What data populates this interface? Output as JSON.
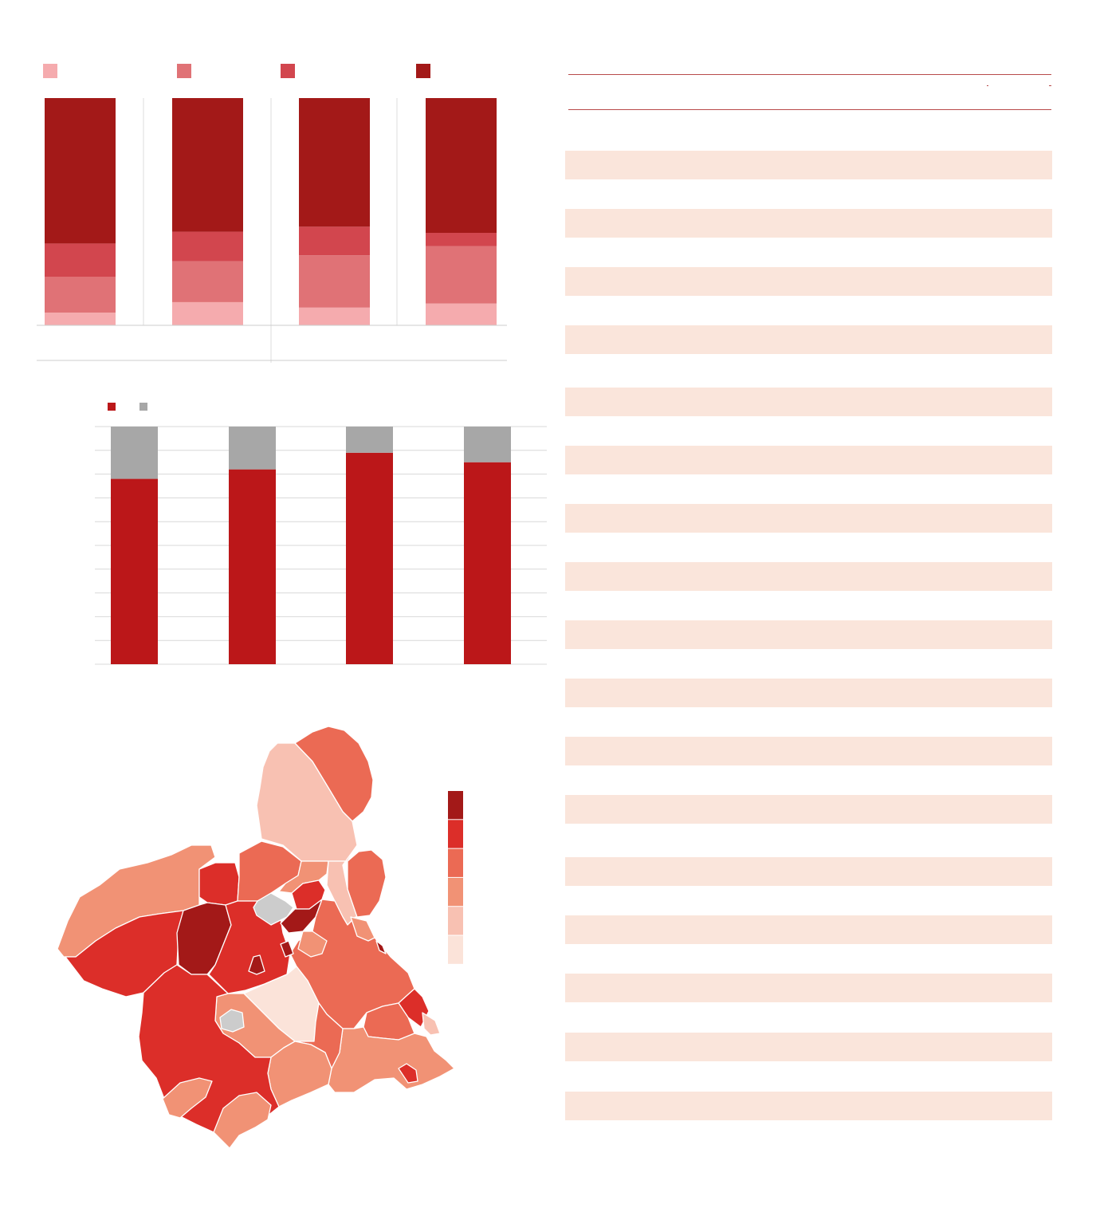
{
  "colors": {
    "background": "#ffffff",
    "stack_1": "#f5abae",
    "stack_2": "#e07276",
    "stack_3": "#d2464e",
    "stack_4": "#a31918",
    "bar_primary": "#bb1719",
    "bar_secondary": "#a7a7a7",
    "table_band": "#fae5db",
    "table_rule": "#b84a4a",
    "grid": "#d8d8d8",
    "map_no_data": "#cccccc",
    "map_scale": [
      "#a31918",
      "#dc2e29",
      "#eb6a54",
      "#f19275",
      "#f8c1b2",
      "#fbe3d9"
    ]
  },
  "chart_data": [
    {
      "type": "bar",
      "stacked": true,
      "normalized": true,
      "categories": [
        "",
        "",
        "",
        ""
      ],
      "series": [
        {
          "color": "#f5abae",
          "values": [
            5.6,
            10.2,
            7.8,
            9.6
          ]
        },
        {
          "color": "#e07276",
          "values": [
            15.8,
            18.0,
            23.0,
            25.2
          ]
        },
        {
          "color": "#d2464e",
          "values": [
            14.6,
            13.0,
            12.6,
            5.9
          ]
        },
        {
          "color": "#a31918",
          "values": [
            64.0,
            58.8,
            56.6,
            59.3
          ]
        }
      ],
      "ylim": [
        0,
        100
      ],
      "legend_position": "top",
      "grid": false
    },
    {
      "type": "bar",
      "stacked": true,
      "categories": [
        "",
        "",
        "",
        ""
      ],
      "series": [
        {
          "color": "#bb1719",
          "values": [
            78,
            82,
            89,
            85
          ]
        },
        {
          "color": "#a7a7a7",
          "values": [
            22,
            18,
            11,
            15
          ]
        }
      ],
      "ylim": [
        0,
        100
      ],
      "legend_position": "top-left",
      "grid": true
    },
    {
      "type": "choropleth",
      "scale_colors": [
        "#a31918",
        "#dc2e29",
        "#eb6a54",
        "#f19275",
        "#f8c1b2",
        "#fbe3d9"
      ],
      "no_data_color": "#cccccc",
      "legend_position": "right"
    }
  ],
  "table": {
    "rows": 16
  }
}
